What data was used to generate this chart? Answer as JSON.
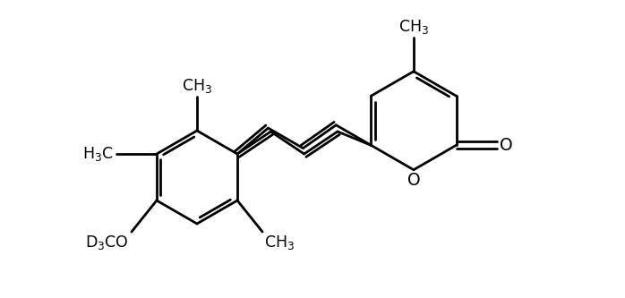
{
  "bg_color": "#ffffff",
  "line_color": "#000000",
  "line_width": 2.0,
  "font_size": 12.5,
  "fig_width": 6.98,
  "fig_height": 3.33,
  "dpi": 100
}
